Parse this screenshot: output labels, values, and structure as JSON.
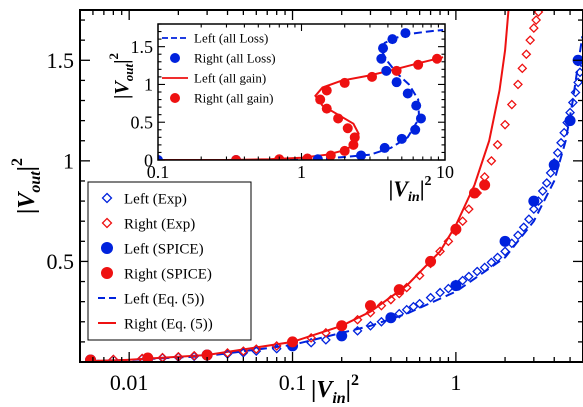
{
  "chart_data": [
    {
      "type": "scatter",
      "xscale": "log",
      "xlim": [
        0.005,
        6
      ],
      "ylim": [
        0,
        1.75
      ],
      "xlabel": "|V_in|^2",
      "ylabel": "|V_out|^2",
      "xticks": [
        {
          "v": 0.01,
          "label": "0.01"
        },
        {
          "v": 0.1,
          "label": "0.1"
        },
        {
          "v": 1,
          "label": "1"
        }
      ],
      "yticks": [
        {
          "v": 0.5,
          "label": "0.5"
        },
        {
          "v": 1,
          "label": "1"
        },
        {
          "v": 1.5,
          "label": "1.5"
        }
      ],
      "legend_position": "bottom-left",
      "series": [
        {
          "name": "Left (Exp)",
          "marker": "diamond-open",
          "color": "#0022dd",
          "x": [
            0.0058,
            0.008,
            0.012,
            0.016,
            0.02,
            0.025,
            0.03,
            0.04,
            0.05,
            0.06,
            0.08,
            0.1,
            0.13,
            0.16,
            0.2,
            0.25,
            0.3,
            0.35,
            0.4,
            0.45,
            0.5,
            0.55,
            0.6,
            0.7,
            0.8,
            0.9,
            1.0,
            1.1,
            1.2,
            1.35,
            1.5,
            1.65,
            1.8,
            2.0,
            2.2,
            2.4,
            2.6,
            2.8,
            3.0,
            3.2,
            3.4,
            3.6,
            3.8,
            4.0,
            4.2,
            4.4,
            4.6,
            4.8,
            5.0,
            5.2,
            5.4,
            5.6,
            5.75,
            5.85
          ],
          "y": [
            0.01,
            0.012,
            0.016,
            0.02,
            0.024,
            0.028,
            0.032,
            0.04,
            0.046,
            0.054,
            0.066,
            0.08,
            0.096,
            0.11,
            0.13,
            0.155,
            0.18,
            0.2,
            0.22,
            0.24,
            0.26,
            0.275,
            0.29,
            0.32,
            0.345,
            0.365,
            0.385,
            0.405,
            0.425,
            0.45,
            0.47,
            0.495,
            0.52,
            0.55,
            0.59,
            0.63,
            0.67,
            0.71,
            0.76,
            0.8,
            0.85,
            0.89,
            0.94,
            0.99,
            1.04,
            1.09,
            1.14,
            1.19,
            1.24,
            1.29,
            1.34,
            1.39,
            1.44,
            1.49
          ]
        },
        {
          "name": "Right (Exp)",
          "marker": "diamond-open",
          "color": "#ee1111",
          "x": [
            0.0058,
            0.008,
            0.012,
            0.016,
            0.02,
            0.025,
            0.03,
            0.04,
            0.05,
            0.06,
            0.08,
            0.1,
            0.13,
            0.16,
            0.2,
            0.25,
            0.3,
            0.35,
            0.4,
            0.45,
            0.5,
            0.6,
            0.7,
            0.8,
            0.9,
            1.0,
            1.1,
            1.2,
            1.35,
            1.5,
            1.65,
            1.8,
            2.0,
            2.2,
            2.4,
            2.55,
            2.7,
            2.85,
            3.0,
            3.1,
            3.2
          ],
          "y": [
            0.01,
            0.013,
            0.018,
            0.022,
            0.026,
            0.031,
            0.036,
            0.045,
            0.054,
            0.064,
            0.08,
            0.097,
            0.12,
            0.145,
            0.175,
            0.21,
            0.245,
            0.28,
            0.31,
            0.34,
            0.37,
            0.43,
            0.49,
            0.55,
            0.6,
            0.65,
            0.7,
            0.76,
            0.84,
            0.92,
            1.0,
            1.08,
            1.18,
            1.28,
            1.38,
            1.46,
            1.53,
            1.6,
            1.66,
            1.7,
            1.74
          ]
        },
        {
          "name": "Left (SPICE)",
          "marker": "circle-filled",
          "color": "#0022dd",
          "x": [
            0.0058,
            0.013,
            0.03,
            0.1,
            0.2,
            0.4,
            1.0,
            2.0,
            3.0,
            4.0,
            5.0,
            5.6
          ],
          "y": [
            0.01,
            0.018,
            0.035,
            0.08,
            0.13,
            0.22,
            0.38,
            0.6,
            0.8,
            0.98,
            1.2,
            1.5
          ]
        },
        {
          "name": "Right (SPICE)",
          "marker": "circle-filled",
          "color": "#ee1111",
          "x": [
            0.0058,
            0.013,
            0.03,
            0.1,
            0.2,
            0.3,
            0.45,
            0.7,
            1.0,
            1.3,
            1.5
          ],
          "y": [
            0.01,
            0.02,
            0.035,
            0.1,
            0.18,
            0.28,
            0.36,
            0.5,
            0.66,
            0.84,
            0.88
          ]
        },
        {
          "name": "Left (Eq. (5))",
          "line": "dashed",
          "color": "#0022dd",
          "x": [
            0.0058,
            0.01,
            0.03,
            0.1,
            0.3,
            0.5,
            1.0,
            2.0,
            3.0,
            4.0,
            4.7,
            5.2,
            5.6,
            5.95
          ],
          "y": [
            0.005,
            0.01,
            0.03,
            0.085,
            0.18,
            0.24,
            0.35,
            0.52,
            0.7,
            0.9,
            1.1,
            1.3,
            1.48,
            1.62
          ]
        },
        {
          "name": "Right (Eq. (5))",
          "line": "solid",
          "color": "#ee1111",
          "x": [
            0.0058,
            0.01,
            0.03,
            0.1,
            0.2,
            0.3,
            0.5,
            0.8,
            1.0,
            1.3,
            1.6,
            1.85,
            2.0,
            2.1
          ],
          "y": [
            0.005,
            0.011,
            0.035,
            0.1,
            0.18,
            0.25,
            0.38,
            0.55,
            0.68,
            0.88,
            1.1,
            1.35,
            1.55,
            1.75
          ]
        }
      ]
    },
    {
      "type": "scatter",
      "inset": true,
      "xscale": "log",
      "xlim": [
        0.1,
        10
      ],
      "ylim": [
        0,
        1.8
      ],
      "xlabel": "|V_in|^2",
      "ylabel": "|V_out|^2",
      "xticks": [
        {
          "v": 0.1,
          "label": "0.1"
        },
        {
          "v": 1,
          "label": "1"
        },
        {
          "v": 10,
          "label": "10"
        }
      ],
      "yticks": [
        {
          "v": 0,
          "label": "0"
        },
        {
          "v": 0.5,
          "label": "0.5"
        },
        {
          "v": 1,
          "label": "1"
        },
        {
          "v": 1.5,
          "label": "1.5"
        }
      ],
      "legend_position": "top-left",
      "series": [
        {
          "name": "Left (all Loss)",
          "line": "dashed",
          "color": "#0022dd",
          "x": [
            0.1,
            0.5,
            1.5,
            3.0,
            4.2,
            5.5,
            6.6,
            6.5,
            5.6,
            4.6,
            4.0,
            3.6,
            3.8,
            4.6,
            5.8,
            7.5,
            9.7
          ],
          "y": [
            0.0,
            0.0,
            0.02,
            0.07,
            0.16,
            0.3,
            0.55,
            0.8,
            1.0,
            1.15,
            1.3,
            1.45,
            1.55,
            1.62,
            1.67,
            1.7,
            1.72
          ]
        },
        {
          "name": "Right (all Loss)",
          "marker": "circle-filled",
          "color": "#0022dd",
          "x": [
            0.1,
            0.35,
            1.3,
            2.6,
            3.8,
            5.0,
            6.2,
            6.8,
            6.3,
            5.5,
            4.6,
            3.9,
            3.6,
            3.7,
            4.3,
            5.3
          ],
          "y": [
            0.0,
            0.0,
            0.01,
            0.06,
            0.16,
            0.28,
            0.4,
            0.55,
            0.72,
            0.88,
            1.03,
            1.18,
            1.34,
            1.48,
            1.6,
            1.68
          ]
        },
        {
          "name": "Left (all gain)",
          "line": "solid",
          "color": "#ee1111",
          "x": [
            0.1,
            0.3,
            0.6,
            1.0,
            1.5,
            2.0,
            2.4,
            2.5,
            2.3,
            1.8,
            1.4,
            1.25,
            1.4,
            1.9,
            3.0,
            4.5,
            6.5,
            9.7
          ],
          "y": [
            0.0,
            0.0,
            0.01,
            0.03,
            0.07,
            0.13,
            0.22,
            0.35,
            0.48,
            0.6,
            0.72,
            0.85,
            0.96,
            1.05,
            1.12,
            1.2,
            1.28,
            1.36
          ]
        },
        {
          "name": "Right (all gain)",
          "marker": "circle-filled",
          "color": "#ee1111",
          "x": [
            0.35,
            0.7,
            1.1,
            1.6,
            2.0,
            2.3,
            2.35,
            2.1,
            1.8,
            1.5,
            1.35,
            1.5,
            2.0,
            3.1,
            4.6,
            6.5,
            8.8
          ],
          "y": [
            0.0,
            0.01,
            0.02,
            0.06,
            0.12,
            0.2,
            0.3,
            0.42,
            0.55,
            0.68,
            0.8,
            0.92,
            1.02,
            1.1,
            1.18,
            1.26,
            1.34
          ]
        }
      ]
    }
  ]
}
